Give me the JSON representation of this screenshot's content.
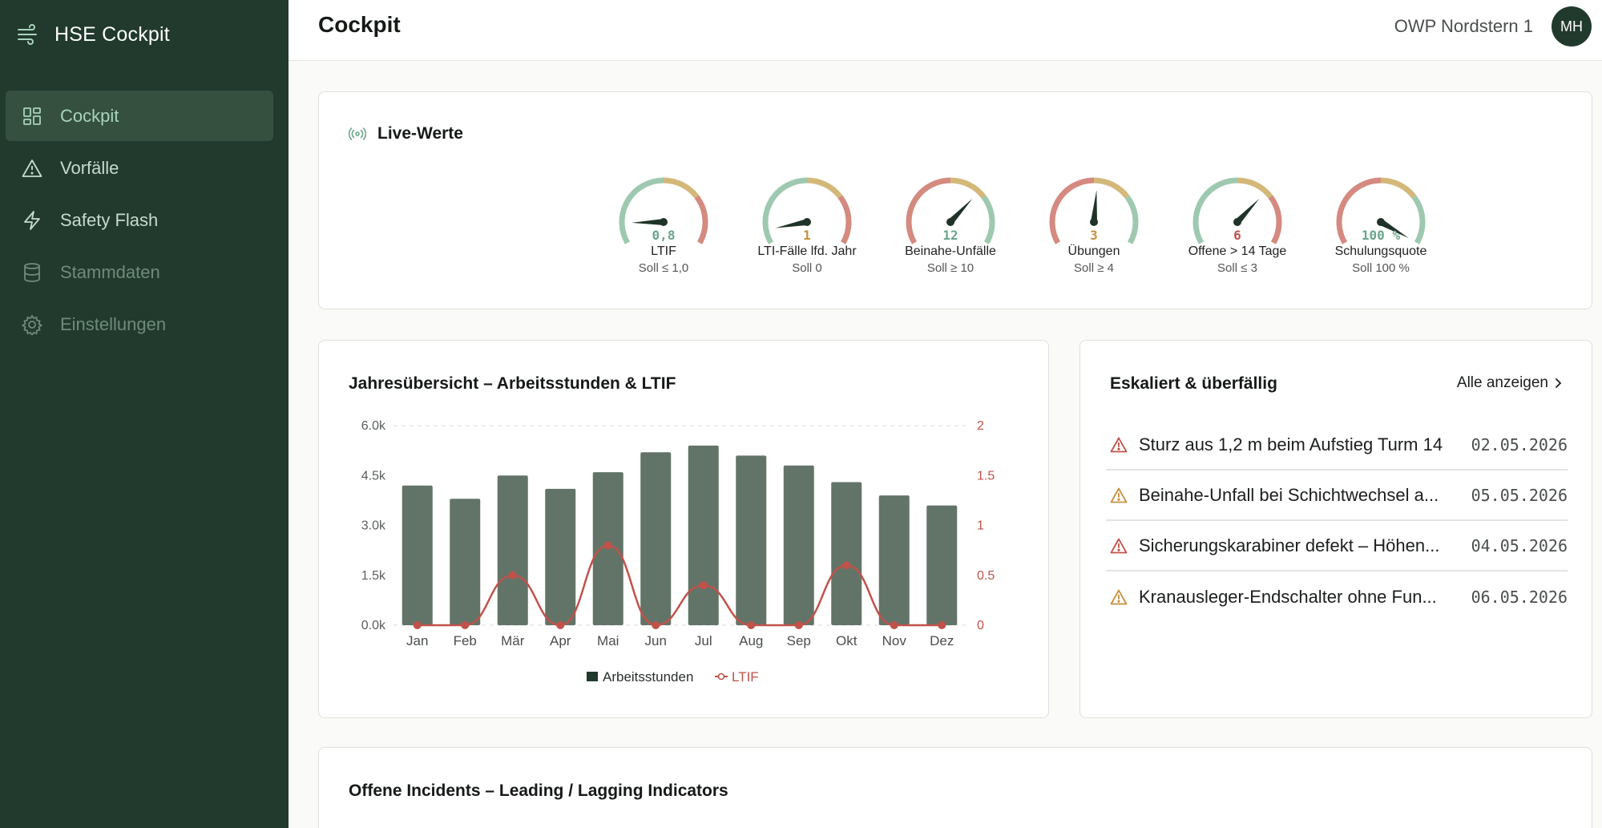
{
  "app": {
    "title": "HSE Cockpit"
  },
  "sidebar": {
    "items": [
      {
        "label": "Cockpit",
        "icon": "grid-icon",
        "state": "active"
      },
      {
        "label": "Vorfälle",
        "icon": "warning-icon",
        "state": "normal"
      },
      {
        "label": "Safety Flash",
        "icon": "lightning-icon",
        "state": "normal"
      },
      {
        "label": "Stammdaten",
        "icon": "database-icon",
        "state": "muted"
      },
      {
        "label": "Einstellungen",
        "icon": "gear-icon",
        "state": "muted"
      }
    ]
  },
  "header": {
    "page_title": "Cockpit",
    "site": "OWP Nordstern 1",
    "avatar_initials": "MH"
  },
  "live": {
    "title": "Live-Werte",
    "icon": "broadcast-icon",
    "gauges": [
      {
        "value": "0,8",
        "label": "LTIF",
        "target": "Soll ≤ 1,0",
        "level": 0.12,
        "value_color": "#6aa68a",
        "zones": [
          "#9ec9b0",
          "#d3b87a",
          "#d48a80"
        ]
      },
      {
        "value": "1",
        "label": "LTI-Fälle lfd. Jahr",
        "target": "Soll 0",
        "level": 0.08,
        "value_color": "#c98f3c",
        "zones": [
          "#9ec9b0",
          "#d3b87a",
          "#d48a80"
        ]
      },
      {
        "value": "12",
        "label": "Beinahe-Unfälle",
        "target": "Soll ≥ 10",
        "level": 0.68,
        "value_color": "#6aa68a",
        "zones": [
          "#d48a80",
          "#d3b87a",
          "#9ec9b0"
        ]
      },
      {
        "value": "3",
        "label": "Übungen",
        "target": "Soll ≥ 4",
        "level": 0.52,
        "value_color": "#c98f3c",
        "zones": [
          "#d48a80",
          "#d3b87a",
          "#9ec9b0"
        ]
      },
      {
        "value": "6",
        "label": "Offene > 14 Tage",
        "target": "Soll ≤ 3",
        "level": 0.68,
        "value_color": "#c0524a",
        "zones": [
          "#9ec9b0",
          "#d3b87a",
          "#d48a80"
        ]
      },
      {
        "value": "100 %",
        "label": "Schulungsquote",
        "target": "Soll 100 %",
        "level": 1.0,
        "value_color": "#6aa68a",
        "zones": [
          "#d48a80",
          "#d3b87a",
          "#9ec9b0"
        ]
      }
    ]
  },
  "chart_data": {
    "type": "bar",
    "title": "Jahresübersicht – Arbeitsstunden & LTIF",
    "categories": [
      "Jan",
      "Feb",
      "Mär",
      "Apr",
      "Mai",
      "Jun",
      "Jul",
      "Aug",
      "Sep",
      "Okt",
      "Nov",
      "Dez"
    ],
    "series": [
      {
        "name": "Arbeitsstunden",
        "type": "bar",
        "axis": "left",
        "color": "#627468",
        "values": [
          4200,
          3800,
          4500,
          4100,
          4600,
          5200,
          5400,
          5100,
          4800,
          4300,
          3900,
          3600
        ]
      },
      {
        "name": "LTIF",
        "type": "line",
        "axis": "right",
        "color": "#c0524a",
        "values": [
          0,
          0,
          0.5,
          0,
          0.8,
          0,
          0.4,
          0,
          0,
          0.6,
          0,
          0
        ]
      }
    ],
    "y_left": {
      "ylim": [
        0,
        6000
      ],
      "ticks": [
        "0.0k",
        "1.5k",
        "3.0k",
        "4.5k",
        "6.0k"
      ]
    },
    "y_right": {
      "ylim": [
        0,
        2
      ],
      "ticks": [
        "0",
        "0.5",
        "1",
        "1.5",
        "2"
      ]
    },
    "legend": {
      "placement": "bottom"
    },
    "grid": "top-dashed"
  },
  "escalated": {
    "title": "Eskaliert & überfällig",
    "show_all": "Alle anzeigen",
    "items": [
      {
        "text": "Sturz aus 1,2 m beim Aufstieg Turm 14",
        "date": "02.05.2026",
        "severity": "high",
        "icon_color": "#c0524a"
      },
      {
        "text": "Beinahe-Unfall bei Schichtwechsel a...",
        "date": "05.05.2026",
        "severity": "medium",
        "icon_color": "#c98f3c"
      },
      {
        "text": "Sicherungskarabiner defekt – Höhen...",
        "date": "04.05.2026",
        "severity": "high",
        "icon_color": "#c0524a"
      },
      {
        "text": "Kranausleger-Endschalter ohne Fun...",
        "date": "06.05.2026",
        "severity": "medium",
        "icon_color": "#c98f3c"
      }
    ]
  },
  "incidents": {
    "title": "Offene Incidents – Leading / Lagging Indicators"
  }
}
